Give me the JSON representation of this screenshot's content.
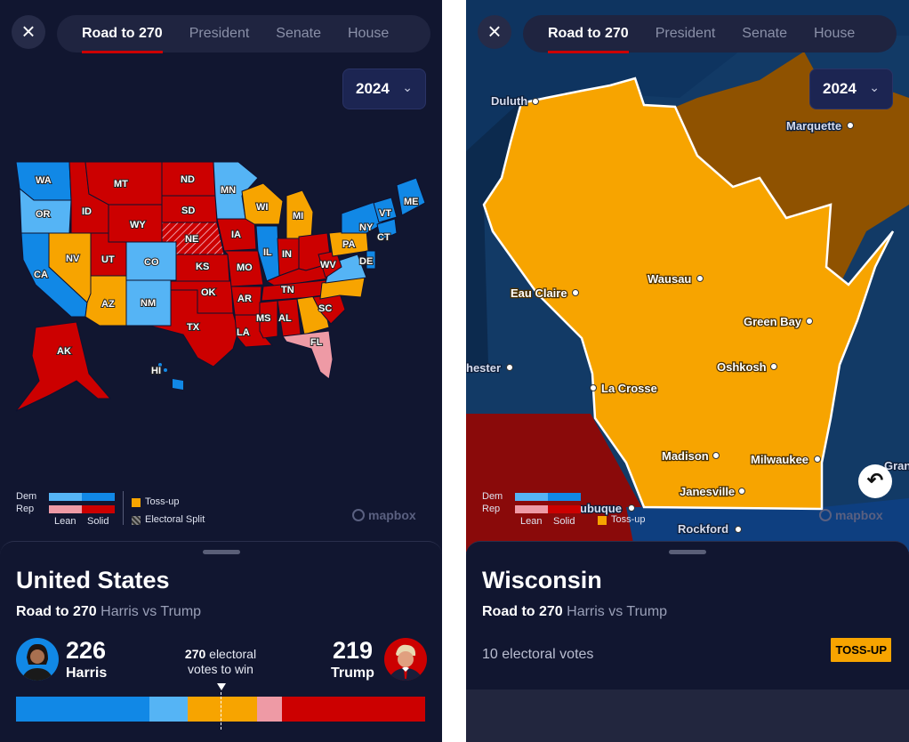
{
  "left": {
    "tabs": [
      {
        "label": "Road to 270",
        "active": true
      },
      {
        "label": "President",
        "active": false
      },
      {
        "label": "Senate",
        "active": false
      },
      {
        "label": "House",
        "active": false
      }
    ],
    "year": "2024",
    "map_states": [
      "WA",
      "OR",
      "CA",
      "NV",
      "ID",
      "MT",
      "WY",
      "UT",
      "AZ",
      "CO",
      "NM",
      "ND",
      "SD",
      "NE",
      "KS",
      "OK",
      "TX",
      "MN",
      "IA",
      "MO",
      "AR",
      "LA",
      "WI",
      "IL",
      "MI",
      "IN",
      "KY",
      "TN",
      "MS",
      "AL",
      "GA",
      "FL",
      "SC",
      "NC",
      "VA",
      "WV",
      "OH",
      "PA",
      "NY",
      "VT",
      "ME",
      "CT",
      "DE",
      "AK",
      "HI"
    ],
    "legend": {
      "dem": "Dem",
      "rep": "Rep",
      "lean": "Lean",
      "solid": "Solid",
      "tossup": "Toss-up",
      "split": "Electoral Split"
    },
    "attribution": "mapbox",
    "sheet": {
      "title": "United States",
      "subtitle_bold": "Road to 270",
      "subtitle_rest": "Harris vs Trump",
      "harris_votes": "226",
      "harris_name": "Harris",
      "trump_votes": "219",
      "trump_name": "Trump",
      "win_num": "270",
      "win_text": "electoral",
      "win_text2": "votes to win"
    },
    "bar_segments": [
      {
        "label": "solid-dem",
        "color": "#1188e6",
        "share": 0.325
      },
      {
        "label": "lean-dem",
        "color": "#55b4f5",
        "share": 0.095
      },
      {
        "label": "tossup",
        "color": "#f7a400",
        "share": 0.17
      },
      {
        "label": "lean-rep",
        "color": "#ee9aa5",
        "share": 0.06
      },
      {
        "label": "solid-rep",
        "color": "#cc0000",
        "share": 0.35
      }
    ]
  },
  "right": {
    "tabs": [
      {
        "label": "Road to 270",
        "active": true
      },
      {
        "label": "President",
        "active": false
      },
      {
        "label": "Senate",
        "active": false
      },
      {
        "label": "House",
        "active": false
      }
    ],
    "year": "2024",
    "cities": {
      "duluth": "Duluth",
      "marquette": "Marquette",
      "wausau": "Wausau",
      "eau_claire": "Eau Claire",
      "green_bay": "Green Bay",
      "chester": "hester",
      "oshkosh": "Oshkosh",
      "la_crosse": "La Crosse",
      "madison": "Madison",
      "milwaukee": "Milwaukee",
      "janesville": "Janesville",
      "dubuque": "ubuque",
      "rockford": "Rockford",
      "gran": "Gran"
    },
    "legend": {
      "dem": "Dem",
      "rep": "Rep",
      "lean": "Lean",
      "solid": "Solid",
      "tossup": "Toss-up"
    },
    "attribution": "mapbox",
    "sheet": {
      "title": "Wisconsin",
      "subtitle_bold": "Road to 270",
      "subtitle_rest": "Harris vs Trump",
      "ev": "10 electoral votes",
      "badge": "TOSS-UP"
    }
  },
  "colors": {
    "solid_dem": "#1188e6",
    "lean_dem": "#55b4f5",
    "tossup": "#f7a400",
    "lean_rep": "#ee9aa5",
    "solid_rep": "#cc0000"
  }
}
